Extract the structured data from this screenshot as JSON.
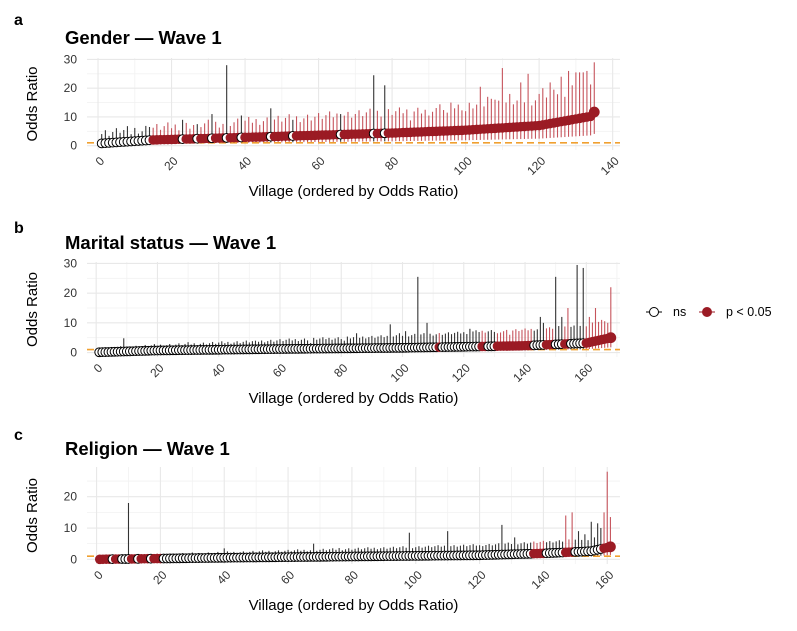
{
  "colors": {
    "significant": "#9b1b24",
    "significant_ci": "#c6545c",
    "ns_ci": "#333333",
    "ns_fill": "#ffffff",
    "ns_stroke": "#000000",
    "reference_line": "#f0a030",
    "grid": "#e8e8e8"
  },
  "legend": {
    "items": [
      {
        "key": "ns",
        "label": "ns"
      },
      {
        "key": "sig",
        "label": "p < 0.05"
      }
    ]
  },
  "chart_data": [
    {
      "panel_letter": "a",
      "type": "scatter",
      "title": "Gender — Wave 1",
      "xlabel": "Village (ordered by Odds Ratio)",
      "ylabel": "Odds Ratio",
      "xlim": [
        -3,
        142
      ],
      "ylim": [
        -1.5,
        30.5
      ],
      "xticks": [
        0,
        20,
        40,
        60,
        80,
        100,
        120,
        140
      ],
      "yticks": [
        0,
        10,
        20,
        30
      ],
      "reference_line": 1,
      "n": 135,
      "ns_indices": [
        1,
        2,
        3,
        4,
        5,
        6,
        7,
        8,
        9,
        10,
        11,
        12,
        13,
        14,
        23,
        27,
        31,
        35,
        39,
        47,
        53,
        66,
        75,
        78
      ],
      "or_profile": [
        [
          1,
          0.8
        ],
        [
          15,
          2.0
        ],
        [
          40,
          2.9
        ],
        [
          80,
          4.4
        ],
        [
          100,
          5.4
        ],
        [
          120,
          7.0
        ],
        [
          134,
          10.2
        ],
        [
          135,
          11.7
        ]
      ],
      "ci_spikes": [
        [
          6,
          4.5
        ],
        [
          9,
          4.0
        ],
        [
          12,
          5.0
        ],
        [
          14,
          6.5
        ],
        [
          23,
          9.0
        ],
        [
          27,
          7.5
        ],
        [
          31,
          11.0
        ],
        [
          35,
          28.0
        ],
        [
          39,
          10.5
        ],
        [
          47,
          13.0
        ],
        [
          53,
          9.0
        ],
        [
          66,
          11.0
        ],
        [
          75,
          24.5
        ],
        [
          78,
          21.0
        ],
        [
          85,
          8.8
        ],
        [
          90,
          10.5
        ],
        [
          95,
          11.5
        ],
        [
          100,
          12.0
        ],
        [
          104,
          20.5
        ],
        [
          106,
          17.0
        ],
        [
          108,
          16.0
        ],
        [
          110,
          27.0
        ],
        [
          112,
          18.0
        ],
        [
          115,
          22.0
        ],
        [
          117,
          25.0
        ],
        [
          118,
          14.0
        ],
        [
          120,
          18.0
        ],
        [
          121,
          20.0
        ],
        [
          123,
          22.0
        ],
        [
          124,
          19.5
        ],
        [
          126,
          24.0
        ],
        [
          127,
          17.0
        ],
        [
          128,
          26.0
        ],
        [
          129,
          21.0
        ],
        [
          130,
          25.5
        ],
        [
          131,
          25.5
        ],
        [
          132,
          25.5
        ],
        [
          133,
          26.0
        ],
        [
          135,
          29.0
        ]
      ],
      "ci_scale": [
        0.05,
        5.0
      ]
    },
    {
      "panel_letter": "b",
      "type": "scatter",
      "title": "Marital status — Wave 1",
      "xlabel": "Village (ordered by Odds Ratio)",
      "ylabel": "Odds Ratio",
      "xlim": [
        -3,
        171
      ],
      "ylim": [
        -1.5,
        30.5
      ],
      "xticks": [
        0,
        20,
        40,
        60,
        80,
        100,
        120,
        140,
        160
      ],
      "yticks": [
        0,
        10,
        20,
        30
      ],
      "reference_line": 1,
      "n": 168,
      "ns_ranges": [
        [
          1,
          111
        ],
        [
          113,
          125
        ],
        [
          128,
          130
        ],
        [
          143,
          146
        ],
        [
          150,
          152
        ],
        [
          155,
          159
        ]
      ],
      "or_profile": [
        [
          1,
          0.1
        ],
        [
          20,
          0.7
        ],
        [
          60,
          1.2
        ],
        [
          100,
          1.6
        ],
        [
          140,
          2.3
        ],
        [
          160,
          3.2
        ],
        [
          168,
          5.0
        ]
      ],
      "ci_spikes": [
        [
          9,
          4.8
        ],
        [
          30,
          3.5
        ],
        [
          52,
          4.0
        ],
        [
          70,
          3.2
        ],
        [
          81,
          4.0
        ],
        [
          85,
          6.5
        ],
        [
          96,
          9.5
        ],
        [
          99,
          6.5
        ],
        [
          101,
          7.2
        ],
        [
          105,
          25.5
        ],
        [
          108,
          10.0
        ],
        [
          118,
          7.0
        ],
        [
          122,
          8.0
        ],
        [
          124,
          7.5
        ],
        [
          131,
          6.5
        ],
        [
          135,
          6.0
        ],
        [
          145,
          12.0
        ],
        [
          146,
          10.0
        ],
        [
          148,
          8.5
        ],
        [
          150,
          25.5
        ],
        [
          152,
          12.0
        ],
        [
          154,
          15.0
        ],
        [
          157,
          29.5
        ],
        [
          159,
          28.5
        ],
        [
          161,
          12.0
        ],
        [
          163,
          15.0
        ],
        [
          165,
          11.0
        ],
        [
          167,
          10.0
        ],
        [
          168,
          22.0
        ]
      ],
      "ci_scale": [
        0.03,
        1.6
      ]
    },
    {
      "panel_letter": "c",
      "type": "scatter",
      "title": "Religion — Wave 1",
      "xlabel": "Village (ordered by Odds Ratio)",
      "ylabel": "Odds Ratio",
      "xlim": [
        -3,
        164
      ],
      "ylim": [
        -1.5,
        29.5
      ],
      "xticks": [
        0,
        20,
        40,
        60,
        80,
        100,
        120,
        140,
        160
      ],
      "yticks": [
        0,
        10,
        20
      ],
      "reference_line": 1,
      "n": 161,
      "sig_ranges": [
        [
          1,
          4
        ],
        [
          6,
          7
        ],
        [
          11,
          12
        ],
        [
          14,
          16
        ],
        [
          18,
          20
        ],
        [
          137,
          140
        ],
        [
          147,
          149
        ],
        [
          159,
          161
        ]
      ],
      "or_profile": [
        [
          1,
          0.0
        ],
        [
          40,
          0.5
        ],
        [
          80,
          0.9
        ],
        [
          120,
          1.3
        ],
        [
          140,
          1.9
        ],
        [
          155,
          2.6
        ],
        [
          161,
          4.0
        ]
      ],
      "ci_spikes": [
        [
          10,
          18.0
        ],
        [
          40,
          3.5
        ],
        [
          68,
          5.0
        ],
        [
          76,
          3.6
        ],
        [
          98,
          8.5
        ],
        [
          110,
          9.0
        ],
        [
          120,
          4.5
        ],
        [
          127,
          11.0
        ],
        [
          131,
          7.0
        ],
        [
          147,
          14.0
        ],
        [
          149,
          15.0
        ],
        [
          151,
          9.0
        ],
        [
          153,
          8.0
        ],
        [
          155,
          12.0
        ],
        [
          157,
          11.5
        ],
        [
          158,
          10.0
        ],
        [
          159,
          15.0
        ],
        [
          160,
          28.0
        ],
        [
          161,
          13.5
        ]
      ],
      "ci_scale": [
        0.02,
        1.2
      ]
    }
  ]
}
